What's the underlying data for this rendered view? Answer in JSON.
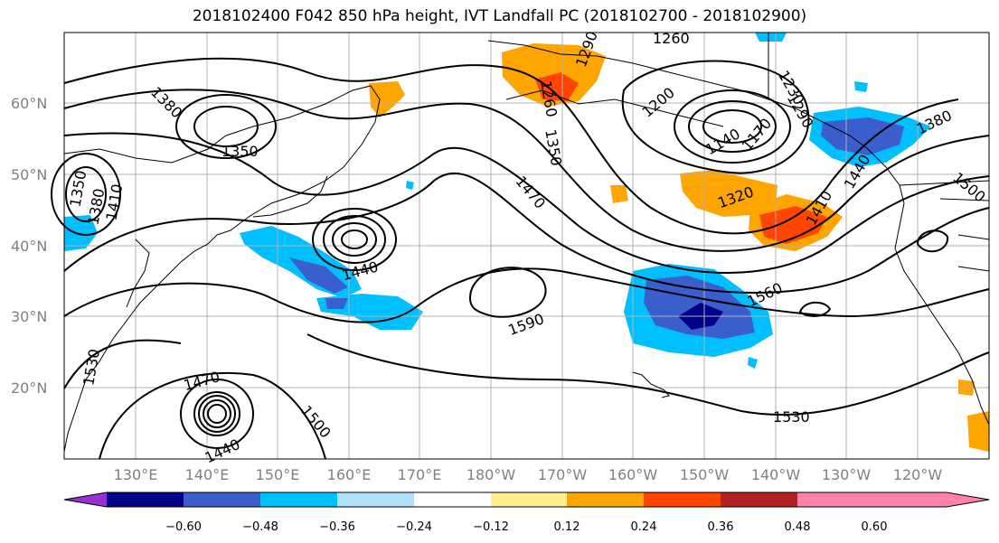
{
  "title": "2018102400 F042 850 hPa height, IVT Landfall PC (2018102700 - 2018102900)",
  "lat_labels": [
    "60°N",
    "50°N",
    "40°N",
    "30°N",
    "20°N"
  ],
  "lon_labels": [
    "130°E",
    "140°E",
    "150°E",
    "160°E",
    "170°E",
    "180°W",
    "170°W",
    "160°W",
    "150°W",
    "140°W",
    "130°W",
    "120°W"
  ],
  "contour_labels": [
    "1380",
    "1350",
    "1350",
    "1380",
    "1410",
    "1440",
    "1470",
    "1590",
    "1560",
    "1530",
    "1470",
    "1500",
    "1440",
    "1530",
    "1200",
    "1260",
    "1260",
    "1290",
    "1350",
    "1320",
    "1410",
    "1440",
    "1380",
    "1500",
    "1140",
    "1170",
    "1230",
    "1290"
  ],
  "colorbar": {
    "ticks": [
      "−0.60",
      "−0.48",
      "−0.36",
      "−0.24",
      "−0.12",
      "0.12",
      "0.24",
      "0.36",
      "0.48",
      "0.60"
    ],
    "colors": [
      "#9b30d0",
      "#00008b",
      "#3a5fcd",
      "#00bfff",
      "#b0e2ff",
      "#ffffff",
      "#ffec8b",
      "#ffa500",
      "#ff4500",
      "#b22222",
      "#ff82ab"
    ]
  }
}
